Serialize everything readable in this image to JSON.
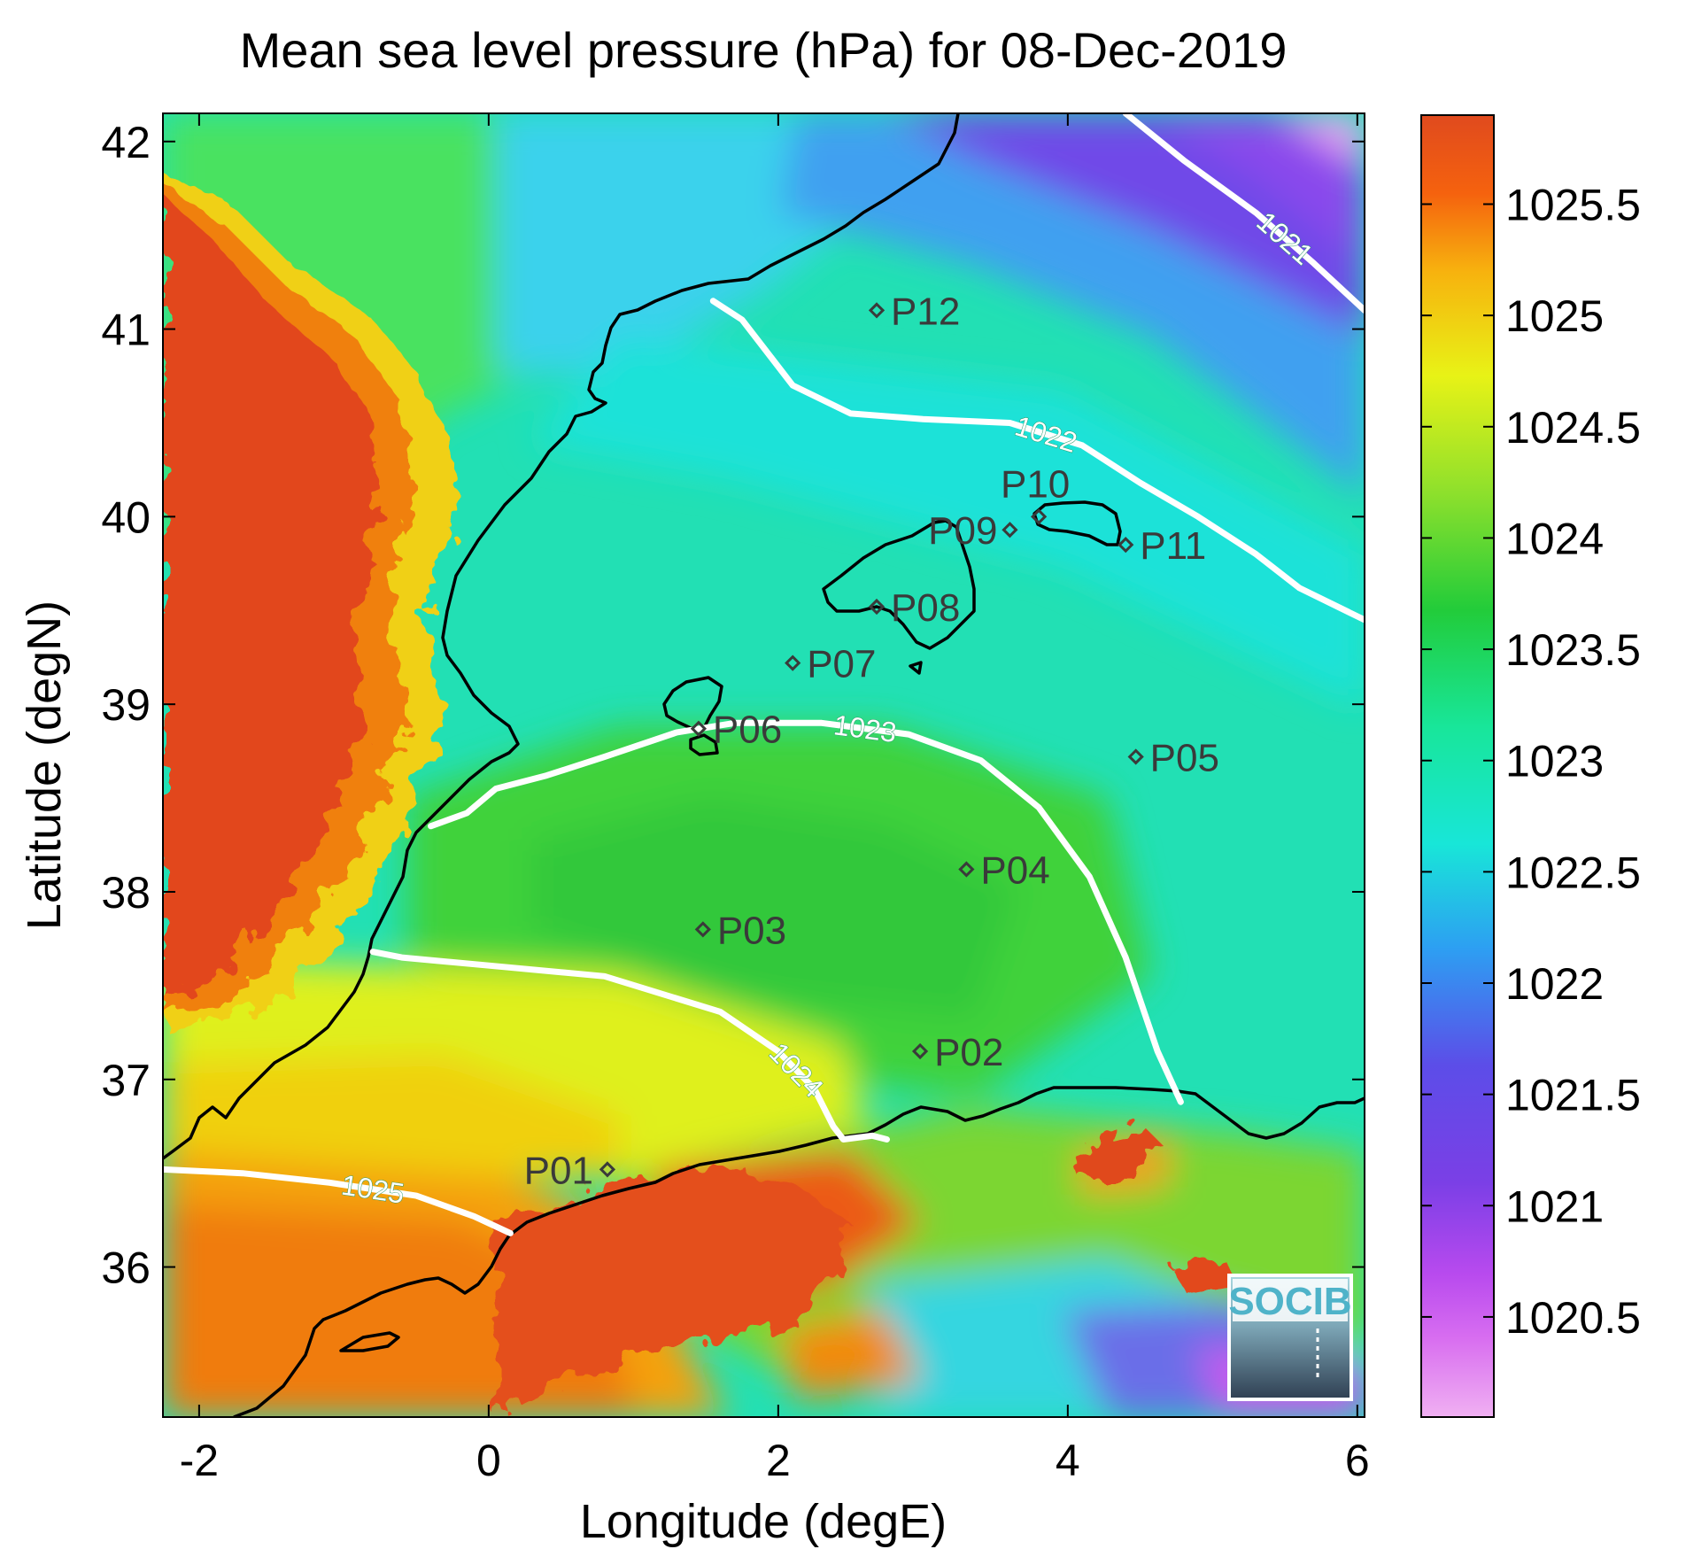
{
  "chart_data": {
    "type": "heatmap",
    "title": "Mean sea level pressure (hPa) for 08-Dec-2019",
    "xlabel": "Longitude (degE)",
    "ylabel": "Latitude (degN)",
    "xlim": [
      -2.25,
      6.05
    ],
    "ylim": [
      35.2,
      42.15
    ],
    "x_ticks": [
      -2,
      0,
      2,
      4,
      6
    ],
    "y_ticks": [
      36,
      37,
      38,
      39,
      40,
      41,
      42
    ],
    "x_tick_labels": [
      "-2",
      "0",
      "2",
      "4",
      "6"
    ],
    "y_tick_labels": [
      "36",
      "37",
      "38",
      "39",
      "40",
      "41",
      "42"
    ],
    "colorbar": {
      "range": [
        1020.05,
        1025.9
      ],
      "ticks": [
        1020.5,
        1021,
        1021.5,
        1022,
        1022.5,
        1023,
        1023.5,
        1024,
        1024.5,
        1025,
        1025.5
      ],
      "tick_labels": [
        "1020.5",
        "1021",
        "1021.5",
        "1022",
        "1022.5",
        "1023",
        "1023.5",
        "1024",
        "1024.5",
        "1025",
        "1025.5"
      ]
    },
    "stations": [
      {
        "name": "P01",
        "lon": 0.82,
        "lat": 36.52
      },
      {
        "name": "P02",
        "lon": 2.98,
        "lat": 37.15
      },
      {
        "name": "P03",
        "lon": 1.48,
        "lat": 37.8
      },
      {
        "name": "P04",
        "lon": 3.3,
        "lat": 38.12
      },
      {
        "name": "P05",
        "lon": 4.47,
        "lat": 38.72
      },
      {
        "name": "P06",
        "lon": 1.45,
        "lat": 38.87
      },
      {
        "name": "P07",
        "lon": 2.1,
        "lat": 39.22
      },
      {
        "name": "P08",
        "lon": 2.68,
        "lat": 39.52
      },
      {
        "name": "P09",
        "lon": 3.6,
        "lat": 39.93
      },
      {
        "name": "P10",
        "lon": 3.8,
        "lat": 40.0
      },
      {
        "name": "P11",
        "lon": 4.4,
        "lat": 39.85
      },
      {
        "name": "P12",
        "lon": 2.68,
        "lat": 41.1
      }
    ],
    "contours": [
      {
        "level": 1021,
        "label": "1021",
        "points": [
          [
            4.4,
            42.15
          ],
          [
            4.8,
            41.9
          ],
          [
            5.3,
            41.62
          ],
          [
            5.7,
            41.35
          ],
          [
            6.05,
            41.1
          ]
        ]
      },
      {
        "level": 1022,
        "label": "1022",
        "points": [
          [
            1.55,
            41.15
          ],
          [
            1.75,
            41.05
          ],
          [
            2.1,
            40.7
          ],
          [
            2.5,
            40.55
          ],
          [
            3.0,
            40.52
          ],
          [
            3.6,
            40.5
          ],
          [
            4.1,
            40.38
          ],
          [
            4.5,
            40.18
          ],
          [
            4.9,
            40.0
          ],
          [
            5.3,
            39.8
          ],
          [
            5.6,
            39.62
          ],
          [
            6.05,
            39.45
          ]
        ]
      },
      {
        "level": 1023,
        "label": "1023",
        "points": [
          [
            -0.4,
            38.35
          ],
          [
            -0.15,
            38.42
          ],
          [
            0.05,
            38.55
          ],
          [
            0.4,
            38.62
          ],
          [
            0.8,
            38.72
          ],
          [
            1.3,
            38.85
          ],
          [
            1.7,
            38.9
          ],
          [
            2.3,
            38.9
          ],
          [
            2.9,
            38.84
          ],
          [
            3.4,
            38.7
          ],
          [
            3.8,
            38.45
          ],
          [
            4.15,
            38.08
          ],
          [
            4.4,
            37.65
          ],
          [
            4.62,
            37.15
          ],
          [
            4.78,
            36.88
          ]
        ]
      },
      {
        "level": 1024,
        "label": "1024",
        "points": [
          [
            -0.8,
            37.68
          ],
          [
            -0.6,
            37.65
          ],
          [
            0.1,
            37.6
          ],
          [
            0.8,
            37.55
          ],
          [
            1.6,
            37.36
          ],
          [
            2.0,
            37.15
          ],
          [
            2.25,
            36.95
          ],
          [
            2.38,
            36.75
          ],
          [
            2.45,
            36.68
          ],
          [
            2.65,
            36.7
          ],
          [
            2.75,
            36.68
          ]
        ]
      },
      {
        "level": 1025,
        "label": "1025",
        "points": [
          [
            -2.25,
            36.52
          ],
          [
            -1.7,
            36.5
          ],
          [
            -1.1,
            36.45
          ],
          [
            -0.5,
            36.38
          ],
          [
            -0.1,
            36.27
          ],
          [
            0.15,
            36.18
          ]
        ]
      }
    ],
    "logo": "SOCIB"
  }
}
